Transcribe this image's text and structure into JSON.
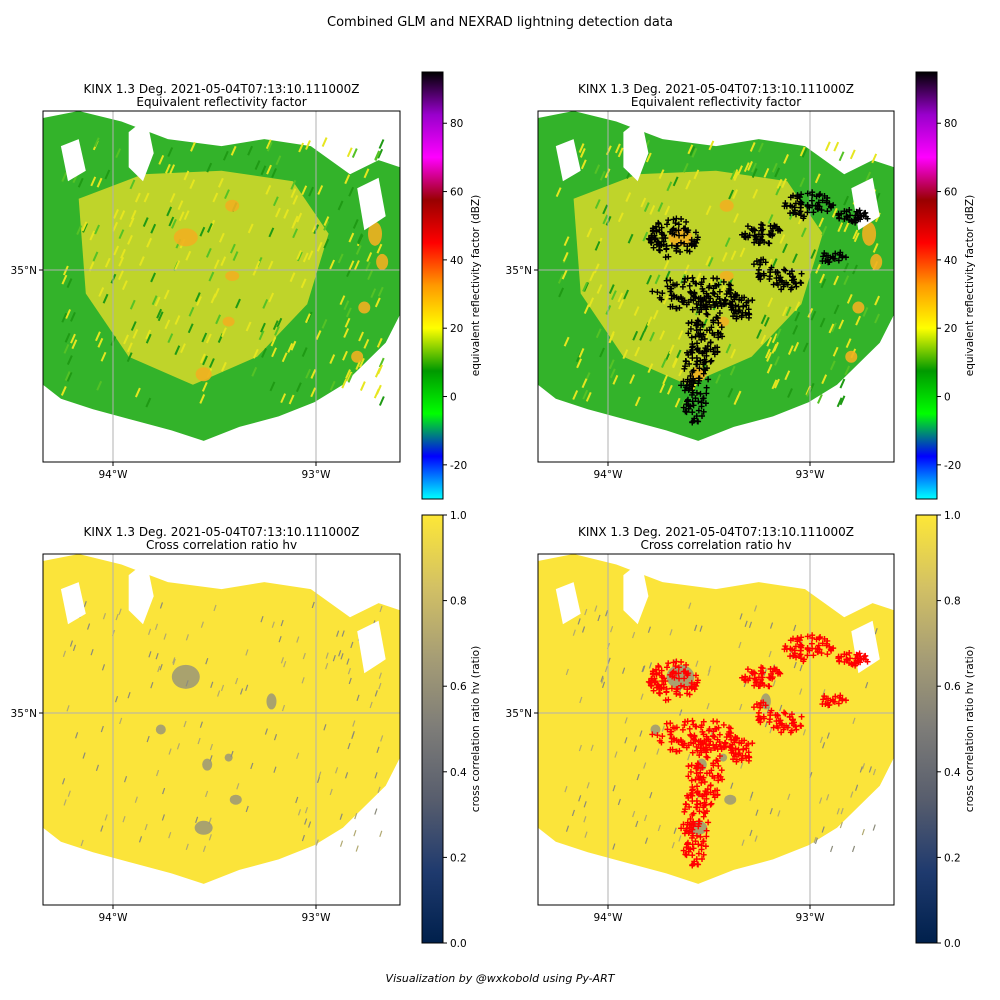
{
  "figure": {
    "suptitle": "Combined GLM and NEXRAD lightning detection data",
    "footer": "Visualization by @wxkobold using Py-ART"
  },
  "chart_data": [
    {
      "type": "heatmap",
      "title": "KINX 1.3 Deg. 2021-05-04T07:13:10.111000Z",
      "subtitle": "Equivalent reflectivity factor",
      "xticks": [
        "94°W",
        "93°W"
      ],
      "yticks": [
        "35°N"
      ],
      "grid": true,
      "overlay": "none",
      "colorbar": {
        "label": "equivalent reflectivity factor (dBZ)",
        "range": [
          -30,
          95
        ],
        "ticks": [
          -20,
          0,
          20,
          40,
          60,
          80
        ],
        "colormap": [
          "#00ffff",
          "#0000ff",
          "#00ff00",
          "#009900",
          "#ffff00",
          "#ff9900",
          "#ff0000",
          "#990000",
          "#ff00ff",
          "#9900cc",
          "#000000"
        ]
      }
    },
    {
      "type": "heatmap",
      "title": "KINX 1.3 Deg. 2021-05-04T07:13:10.111000Z",
      "subtitle": "Equivalent reflectivity factor",
      "xticks": [
        "94°W",
        "93°W"
      ],
      "yticks": [
        "35°N"
      ],
      "grid": true,
      "overlay": "GLM lightning detections (+ markers, black)",
      "overlay_color": "#000000",
      "colorbar": {
        "label": "equivalent reflectivity factor (dBZ)",
        "range": [
          -30,
          95
        ],
        "ticks": [
          -20,
          0,
          20,
          40,
          60,
          80
        ],
        "colormap": [
          "#00ffff",
          "#0000ff",
          "#00ff00",
          "#009900",
          "#ffff00",
          "#ff9900",
          "#ff0000",
          "#990000",
          "#ff00ff",
          "#9900cc",
          "#000000"
        ]
      }
    },
    {
      "type": "heatmap",
      "title": "KINX 1.3 Deg. 2021-05-04T07:13:10.111000Z",
      "subtitle": "Cross correlation ratio hv",
      "xticks": [
        "94°W",
        "93°W"
      ],
      "yticks": [
        "35°N"
      ],
      "grid": true,
      "overlay": "none",
      "colorbar": {
        "label": "cross correlation ratio hv (ratio)",
        "range": [
          0.0,
          1.0
        ],
        "ticks": [
          "0.0",
          "0.2",
          "0.4",
          "0.6",
          "0.8",
          "1.0"
        ],
        "colormap": [
          "#00204c",
          "#1f3a6e",
          "#575d6d",
          "#7d7c78",
          "#a69d75",
          "#d3c164",
          "#fde737"
        ]
      }
    },
    {
      "type": "heatmap",
      "title": "KINX 1.3 Deg. 2021-05-04T07:13:10.111000Z",
      "subtitle": "Cross correlation ratio hv",
      "xticks": [
        "94°W",
        "93°W"
      ],
      "yticks": [
        "35°N"
      ],
      "grid": true,
      "overlay": "GLM lightning detections (+ markers, red)",
      "overlay_color": "#ff0000",
      "colorbar": {
        "label": "cross correlation ratio hv (ratio)",
        "range": [
          0.0,
          1.0
        ],
        "ticks": [
          "0.0",
          "0.2",
          "0.4",
          "0.6",
          "0.8",
          "1.0"
        ],
        "colormap": [
          "#00204c",
          "#1f3a6e",
          "#575d6d",
          "#7d7c78",
          "#a69d75",
          "#d3c164",
          "#fde737"
        ]
      }
    }
  ]
}
